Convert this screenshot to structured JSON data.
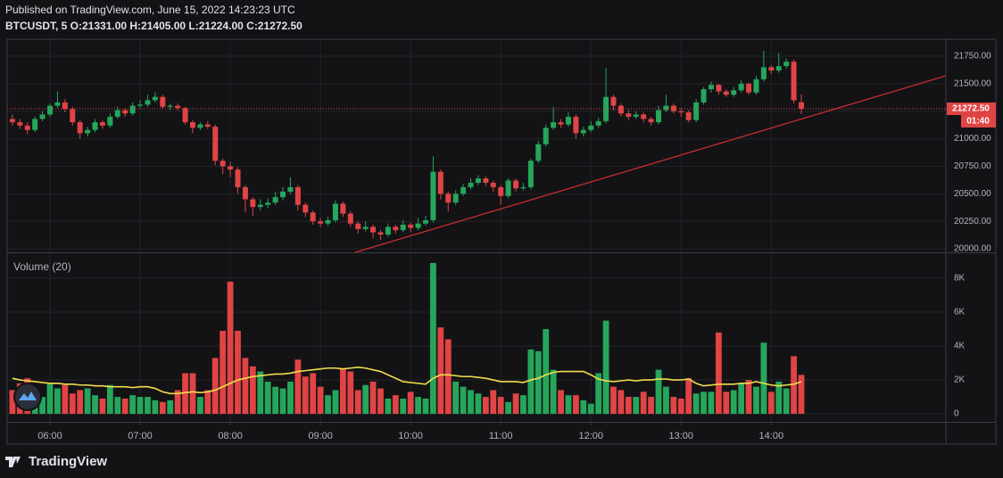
{
  "header": {
    "published": "Published on TradingView.com, June 15, 2022 14:23:23 UTC",
    "legend": "BTCUSDT, 5 O:21331.00 H:21405.00 L:21224.00 C:21272.50"
  },
  "footer": {
    "logo": "TradingView"
  },
  "chart_data": {
    "type": "candlestick",
    "grid": true,
    "up_color": "#26a65b",
    "down_color": "#e04444",
    "ylim": [
      19968,
      21904
    ],
    "yticks": [
      {
        "value": 20000,
        "label": "20000.00"
      },
      {
        "value": 20250,
        "label": "20250.00"
      },
      {
        "value": 20500,
        "label": "20500.00"
      },
      {
        "value": 20750,
        "label": "20750.00"
      },
      {
        "value": 21000,
        "label": "21000.00"
      },
      {
        "value": 21250,
        "label": "21250.00"
      },
      {
        "value": 21500,
        "label": "21500.00"
      },
      {
        "value": 21750,
        "label": "21750.00"
      }
    ],
    "xticks": [
      {
        "value": 5,
        "label": "06:00"
      },
      {
        "value": 17,
        "label": "07:00"
      },
      {
        "value": 29,
        "label": "08:00"
      },
      {
        "value": 41,
        "label": "09:00"
      },
      {
        "value": 53,
        "label": "10:00"
      },
      {
        "value": 65,
        "label": "11:00"
      },
      {
        "value": 77,
        "label": "12:00"
      },
      {
        "value": 89,
        "label": "13:00"
      },
      {
        "value": 101,
        "label": "14:00"
      }
    ],
    "price_label": {
      "value": 21272.5,
      "label": "21272.50"
    },
    "countdown": "01:40",
    "candles": [
      [
        21180,
        21220,
        21120,
        21150
      ],
      [
        21150,
        21180,
        21090,
        21120
      ],
      [
        21120,
        21150,
        21040,
        21080
      ],
      [
        21080,
        21200,
        21060,
        21180
      ],
      [
        21180,
        21250,
        21160,
        21220
      ],
      [
        21220,
        21320,
        21200,
        21300
      ],
      [
        21300,
        21430,
        21280,
        21330
      ],
      [
        21330,
        21360,
        21240,
        21270
      ],
      [
        21270,
        21290,
        21120,
        21150
      ],
      [
        21150,
        21170,
        21000,
        21050
      ],
      [
        21050,
        21110,
        21020,
        21080
      ],
      [
        21080,
        21180,
        21060,
        21150
      ],
      [
        21150,
        21170,
        21090,
        21120
      ],
      [
        21120,
        21230,
        21100,
        21200
      ],
      [
        21200,
        21290,
        21180,
        21260
      ],
      [
        21260,
        21280,
        21200,
        21230
      ],
      [
        21230,
        21330,
        21210,
        21300
      ],
      [
        21300,
        21350,
        21280,
        21310
      ],
      [
        21310,
        21400,
        21290,
        21350
      ],
      [
        21350,
        21420,
        21330,
        21380
      ],
      [
        21380,
        21400,
        21270,
        21290
      ],
      [
        21290,
        21320,
        21260,
        21300
      ],
      [
        21300,
        21320,
        21260,
        21280
      ],
      [
        21280,
        21290,
        21130,
        21150
      ],
      [
        21150,
        21170,
        21050,
        21100
      ],
      [
        21100,
        21150,
        21080,
        21130
      ],
      [
        21130,
        21160,
        21090,
        21110
      ],
      [
        21110,
        21130,
        20760,
        20800
      ],
      [
        20800,
        20820,
        20680,
        20750
      ],
      [
        20750,
        20790,
        20650,
        20720
      ],
      [
        20720,
        20740,
        20500,
        20560
      ],
      [
        20560,
        20580,
        20330,
        20450
      ],
      [
        20450,
        20470,
        20300,
        20380
      ],
      [
        20380,
        20450,
        20350,
        20400
      ],
      [
        20400,
        20460,
        20370,
        20420
      ],
      [
        20420,
        20520,
        20400,
        20470
      ],
      [
        20470,
        20560,
        20440,
        20520
      ],
      [
        20520,
        20650,
        20500,
        20560
      ],
      [
        20560,
        20580,
        20350,
        20400
      ],
      [
        20400,
        20420,
        20290,
        20330
      ],
      [
        20330,
        20350,
        20220,
        20250
      ],
      [
        20250,
        20280,
        20200,
        20230
      ],
      [
        20230,
        20290,
        20210,
        20260
      ],
      [
        20260,
        20440,
        20240,
        20410
      ],
      [
        20410,
        20430,
        20290,
        20320
      ],
      [
        20320,
        20340,
        20200,
        20230
      ],
      [
        20230,
        20250,
        20140,
        20180
      ],
      [
        20180,
        20250,
        20160,
        20200
      ],
      [
        20200,
        20220,
        20100,
        20150
      ],
      [
        20150,
        20170,
        20080,
        20130
      ],
      [
        20130,
        20230,
        20110,
        20200
      ],
      [
        20200,
        20220,
        20140,
        20170
      ],
      [
        20170,
        20260,
        20150,
        20220
      ],
      [
        20220,
        20240,
        20150,
        20190
      ],
      [
        20190,
        20280,
        20170,
        20230
      ],
      [
        20230,
        20300,
        20210,
        20260
      ],
      [
        20260,
        20840,
        20240,
        20700
      ],
      [
        20700,
        20720,
        20450,
        20500
      ],
      [
        20500,
        20520,
        20340,
        20420
      ],
      [
        20420,
        20530,
        20400,
        20500
      ],
      [
        20500,
        20590,
        20480,
        20560
      ],
      [
        20560,
        20640,
        20540,
        20600
      ],
      [
        20600,
        20670,
        20580,
        20640
      ],
      [
        20640,
        20660,
        20570,
        20600
      ],
      [
        20600,
        20620,
        20520,
        20560
      ],
      [
        20560,
        20580,
        20400,
        20480
      ],
      [
        20480,
        20640,
        20460,
        20620
      ],
      [
        20620,
        20640,
        20520,
        20550
      ],
      [
        20550,
        20600,
        20530,
        20560
      ],
      [
        20560,
        20820,
        20540,
        20800
      ],
      [
        20800,
        20980,
        20780,
        20950
      ],
      [
        20950,
        21130,
        20930,
        21100
      ],
      [
        21100,
        21290,
        21080,
        21150
      ],
      [
        21150,
        21180,
        21100,
        21130
      ],
      [
        21130,
        21240,
        21110,
        21200
      ],
      [
        21200,
        21220,
        21000,
        21050
      ],
      [
        21050,
        21110,
        21020,
        21080
      ],
      [
        21080,
        21160,
        21060,
        21120
      ],
      [
        21120,
        21190,
        21100,
        21160
      ],
      [
        21160,
        21640,
        21140,
        21380
      ],
      [
        21380,
        21400,
        21260,
        21300
      ],
      [
        21300,
        21320,
        21200,
        21230
      ],
      [
        21230,
        21260,
        21170,
        21200
      ],
      [
        21200,
        21250,
        21180,
        21220
      ],
      [
        21220,
        21240,
        21150,
        21180
      ],
      [
        21180,
        21200,
        21120,
        21150
      ],
      [
        21150,
        21300,
        21130,
        21260
      ],
      [
        21260,
        21400,
        21240,
        21300
      ],
      [
        21300,
        21320,
        21230,
        21250
      ],
      [
        21250,
        21280,
        21200,
        21240
      ],
      [
        21240,
        21260,
        21150,
        21170
      ],
      [
        21170,
        21360,
        21150,
        21330
      ],
      [
        21330,
        21470,
        21310,
        21450
      ],
      [
        21450,
        21520,
        21420,
        21490
      ],
      [
        21490,
        21500,
        21400,
        21430
      ],
      [
        21430,
        21450,
        21380,
        21400
      ],
      [
        21400,
        21470,
        21380,
        21440
      ],
      [
        21440,
        21530,
        21420,
        21500
      ],
      [
        21500,
        21510,
        21400,
        21420
      ],
      [
        21420,
        21570,
        21400,
        21540
      ],
      [
        21540,
        21800,
        21520,
        21650
      ],
      [
        21650,
        21670,
        21590,
        21620
      ],
      [
        21620,
        21780,
        21600,
        21660
      ],
      [
        21660,
        21730,
        21640,
        21700
      ],
      [
        21700,
        21720,
        21320,
        21350
      ],
      [
        21331,
        21405,
        21224,
        21272.5
      ]
    ],
    "volume": {
      "name": "Volume (20)",
      "ylim": [
        -470,
        9370
      ],
      "yticks": [
        0,
        {
          "value": 2000,
          "label": "2K"
        },
        {
          "value": 4000,
          "label": "4K"
        },
        {
          "value": 6000,
          "label": "6K"
        },
        {
          "value": 8000,
          "label": "8K"
        }
      ],
      "values": [
        1400,
        1800,
        2100,
        1500,
        1000,
        1800,
        1500,
        1700,
        1200,
        1400,
        1500,
        1100,
        900,
        1700,
        1000,
        900,
        1100,
        1000,
        1000,
        800,
        700,
        800,
        1400,
        2400,
        2400,
        1000,
        1400,
        3300,
        4900,
        7800,
        4900,
        3300,
        2800,
        2500,
        1900,
        1600,
        1500,
        1900,
        3200,
        2200,
        2400,
        1600,
        1100,
        1400,
        2700,
        2500,
        1400,
        1700,
        1900,
        1500,
        900,
        1100,
        900,
        1300,
        1000,
        900,
        8900,
        5100,
        4400,
        1900,
        1600,
        1400,
        1200,
        1000,
        1400,
        1000,
        700,
        1200,
        1100,
        3800,
        3700,
        5000,
        2600,
        1400,
        1100,
        1100,
        800,
        600,
        2400,
        5500,
        1600,
        1400,
        1000,
        1000,
        1300,
        1000,
        2600,
        1600,
        1000,
        900,
        2100,
        1200,
        1300,
        1300,
        4800,
        1300,
        1400,
        1800,
        2000,
        1600,
        4200,
        1300,
        1900,
        1500,
        3400,
        2300
      ],
      "ma": {
        "color": "#f2dd4a",
        "values": [
          2100,
          2000,
          1950,
          1900,
          1850,
          1800,
          1800,
          1750,
          1750,
          1700,
          1700,
          1650,
          1650,
          1600,
          1600,
          1600,
          1550,
          1600,
          1600,
          1500,
          1300,
          1200,
          1200,
          1250,
          1300,
          1250,
          1300,
          1400,
          1600,
          1800,
          2000,
          2100,
          2200,
          2250,
          2300,
          2350,
          2350,
          2400,
          2500,
          2550,
          2600,
          2650,
          2700,
          2700,
          2650,
          2700,
          2750,
          2700,
          2600,
          2500,
          2300,
          2100,
          1900,
          1850,
          1800,
          1750,
          2100,
          2300,
          2300,
          2250,
          2200,
          2200,
          2150,
          2100,
          2000,
          1900,
          1900,
          1900,
          1850,
          2000,
          2100,
          2300,
          2450,
          2500,
          2500,
          2500,
          2500,
          2300,
          2050,
          1950,
          1900,
          1950,
          2000,
          1950,
          2000,
          2000,
          2050,
          2050,
          2000,
          2000,
          2050,
          1800,
          1650,
          1700,
          1750,
          1750,
          1750,
          1800,
          1800,
          1900,
          1800,
          1700,
          1650,
          1700,
          1750,
          1900
        ]
      }
    }
  }
}
